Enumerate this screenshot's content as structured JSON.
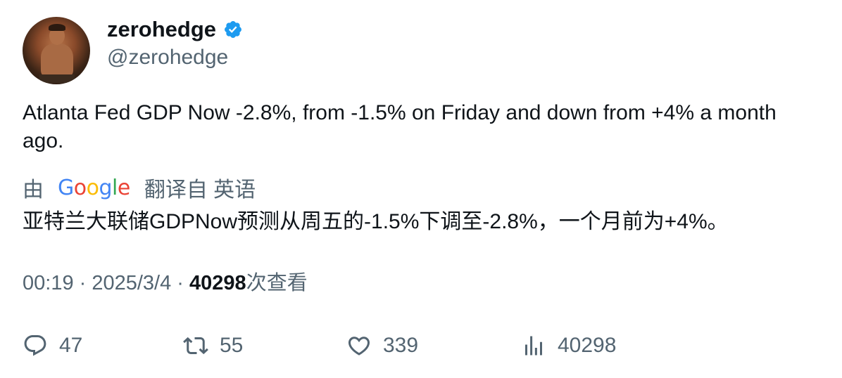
{
  "author": {
    "display_name": "zerohedge",
    "handle": "@zerohedge",
    "verified_color": "#1d9bf0"
  },
  "tweet": {
    "text": "Atlanta Fed GDP Now -2.8%, from -1.5% on Friday and down from +4% a month ago.",
    "translation": {
      "by_label": "由",
      "provider": "Google",
      "from_label": "翻译自 英语",
      "text": "亚特兰大联储GDPNow预测从周五的-1.5%下调至-2.8%，一个月前为+4%。"
    },
    "meta": {
      "time": "00:19",
      "separator": " · ",
      "date": "2025/3/4",
      "views_count": "40298",
      "views_label": "次查看"
    }
  },
  "actions": {
    "replies": {
      "icon": "reply-icon",
      "count": "47"
    },
    "retweets": {
      "icon": "retweet-icon",
      "count": "55"
    },
    "likes": {
      "icon": "heart-icon",
      "count": "339"
    },
    "views": {
      "icon": "analytics-icon",
      "count": "40298"
    }
  }
}
